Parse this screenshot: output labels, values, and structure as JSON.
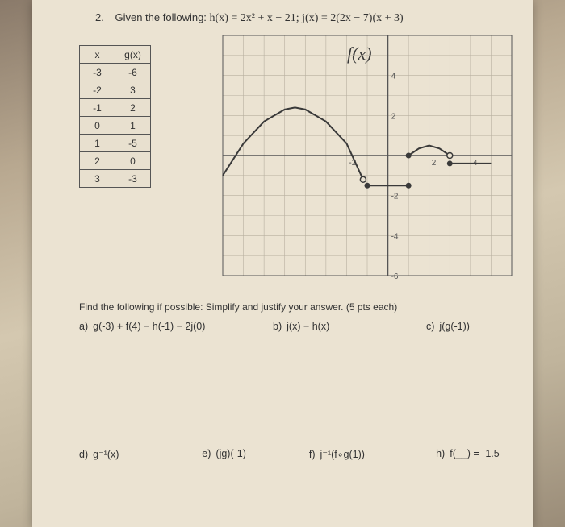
{
  "header": {
    "number": "2.",
    "prompt": "Given the following:",
    "equation": "h(x) = 2x² + x − 21;  j(x) = 2(2x − 7)(x + 3)"
  },
  "table": {
    "headers": [
      "x",
      "g(x)"
    ],
    "rows": [
      [
        "-3",
        "-6"
      ],
      [
        "-2",
        "3"
      ],
      [
        "-1",
        "2"
      ],
      [
        "0",
        "1"
      ],
      [
        "1",
        "-5"
      ],
      [
        "2",
        "0"
      ],
      [
        "3",
        "-3"
      ]
    ]
  },
  "graph_label": "f(x)",
  "graph": {
    "xlim": [
      -8,
      6
    ],
    "ylim": [
      -6,
      6
    ],
    "grid_color": "#b8b0a0",
    "axis_color": "#555",
    "xtick_labels": [
      {
        "x": -2,
        "label": "-2"
      },
      {
        "x": 2,
        "label": "2"
      },
      {
        "x": 4,
        "label": "4"
      }
    ],
    "ytick_labels": [
      {
        "y": 2,
        "label": "2"
      },
      {
        "y": 4,
        "label": "4"
      },
      {
        "y": -2,
        "label": "-2"
      },
      {
        "y": -4,
        "label": "-4"
      },
      {
        "y": -6,
        "label": "-6"
      }
    ],
    "curve1": {
      "type": "parabola_arc",
      "points": [
        [
          -8,
          -1
        ],
        [
          -7,
          0.6
        ],
        [
          -6,
          1.7
        ],
        [
          -5,
          2.3
        ],
        [
          -4.5,
          2.4
        ],
        [
          -4,
          2.3
        ],
        [
          -3,
          1.7
        ],
        [
          -2,
          0.6
        ],
        [
          -1.2,
          -1.2
        ]
      ],
      "open_endpoint": [
        -1.2,
        -1.2
      ],
      "stroke": "#3a3a3a",
      "stroke_width": 2
    },
    "segment": {
      "points": [
        [
          -1,
          -1.5
        ],
        [
          1,
          -1.5
        ]
      ],
      "closed_left": true,
      "closed_right": true,
      "stroke": "#3a3a3a",
      "stroke_width": 2
    },
    "curve2": {
      "points": [
        [
          1,
          0
        ],
        [
          1.5,
          0.35
        ],
        [
          2,
          0.5
        ],
        [
          2.5,
          0.35
        ],
        [
          3,
          0
        ]
      ],
      "open_left": false,
      "open_endpoint": [
        3,
        0
      ],
      "stroke": "#3a3a3a",
      "stroke_width": 2
    },
    "segment2": {
      "points": [
        [
          3,
          -0.4
        ],
        [
          5,
          -0.4
        ]
      ],
      "closed_left": true,
      "stroke": "#3a3a3a",
      "stroke_width": 2
    },
    "marker_radius": 3.5,
    "marker_fill": "#3a3a3a",
    "marker_open_fill": "#ebe3d2"
  },
  "instruction": "Find the following if possible:  Simplify and justify your answer. (5 pts each)",
  "questions_row1": [
    {
      "label": "a)",
      "text": "g(-3) + f(4) − h(-1) − 2j(0)"
    },
    {
      "label": "b)",
      "text": "j(x) − h(x)"
    },
    {
      "label": "c)",
      "text": "j(g(-1))"
    }
  ],
  "questions_row2": [
    {
      "label": "d)",
      "text": "g⁻¹(x)"
    },
    {
      "label": "e)",
      "text": "(jg)(-1)"
    },
    {
      "label": "f)",
      "text": "j⁻¹(f∘g(1))"
    },
    {
      "label": "h)",
      "text": "f(__) = -1.5"
    }
  ]
}
